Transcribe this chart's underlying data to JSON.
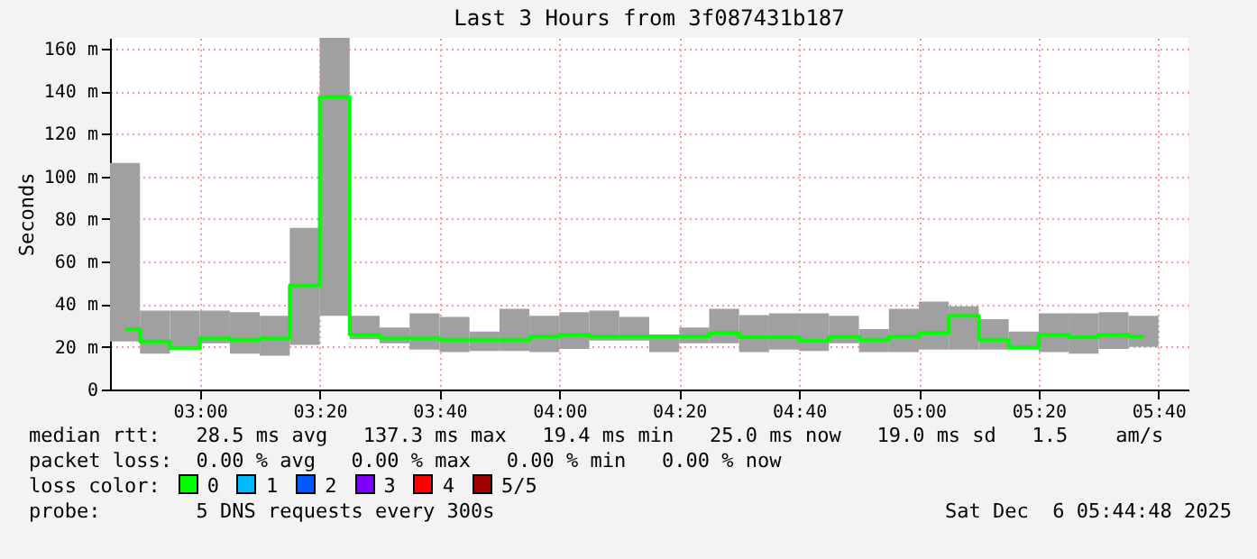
{
  "chart_data": {
    "type": "bar",
    "title": "Last 3 Hours from 3f087431b187",
    "ylabel": "Seconds",
    "x": [
      2.7917,
      2.875,
      2.9583,
      3.0417,
      3.125,
      3.2083,
      3.2917,
      3.375,
      3.4583,
      3.5417,
      3.625,
      3.7083,
      3.7917,
      3.875,
      3.9583,
      4.0417,
      4.125,
      4.2083,
      4.2917,
      4.375,
      4.4583,
      4.5417,
      4.625,
      4.7083,
      4.7917,
      4.875,
      4.9583,
      5.0417,
      5.125,
      5.2083,
      5.2917,
      5.375,
      5.4583,
      5.5417,
      5.625
    ],
    "series": [
      {
        "color": "#a0a0a0",
        "base": [
          22.5,
          16.8,
          19,
          21.7,
          16.8,
          15.9,
          20.9,
          34.6,
          23.6,
          21.7,
          18.7,
          17.6,
          18.1,
          18.1,
          17.6,
          19,
          23,
          23,
          17.6,
          21.7,
          21.7,
          17.6,
          18.7,
          18.1,
          21.7,
          17.6,
          17.6,
          18.7,
          18.7,
          18.7,
          18.7,
          17.6,
          16.8,
          19,
          20
        ],
        "values": [
          83.8,
          20.2,
          18,
          15.3,
          19.5,
          18.7,
          54.9,
          130.4,
          11,
          7.4,
          17,
          16.5,
          9.1,
          19.8,
          17,
          17.3,
          14,
          11.1,
          7.7,
          7.4,
          16.2,
          17.3,
          17,
          17.6,
          12.9,
          10.7,
          20.3,
          22.5,
          20.3,
          14.3,
          8.5,
          18.1,
          18.9,
          17.3,
          14.6
        ]
      },
      {
        "type": "step",
        "name": "0",
        "color": "#00ff00",
        "values": [
          28.3,
          22.5,
          19.4,
          24.2,
          23.4,
          24.2,
          48.9,
          137.3,
          25.8,
          24.2,
          24.2,
          23.4,
          23.4,
          23.4,
          25,
          25.8,
          25,
          25,
          25,
          25,
          26.6,
          24.5,
          24.5,
          23.1,
          24.7,
          23.4,
          25,
          26.6,
          34.6,
          23.4,
          19.8,
          25.8,
          24.5,
          25.8,
          25
        ]
      },
      {
        "type": "step",
        "name": "1",
        "color": "#00b8ff",
        "values": [
          null,
          null,
          null,
          null,
          null,
          null,
          null,
          null,
          null,
          null,
          null,
          null,
          null,
          null,
          null,
          null,
          null,
          null,
          null,
          null,
          null,
          null,
          null,
          null,
          null,
          null,
          null,
          null,
          null,
          null,
          null,
          null,
          null,
          null,
          null
        ]
      },
      {
        "type": "step",
        "name": "2",
        "color": "#0059ff",
        "values": [
          null,
          null,
          null,
          null,
          null,
          null,
          null,
          null,
          null,
          null,
          null,
          null,
          null,
          null,
          null,
          null,
          null,
          null,
          null,
          null,
          null,
          null,
          null,
          null,
          null,
          null,
          null,
          null,
          null,
          null,
          null,
          null,
          null,
          null,
          null
        ]
      },
      {
        "type": "step",
        "name": "3",
        "color": "#7e00ff",
        "values": [
          null,
          null,
          null,
          null,
          null,
          null,
          null,
          null,
          null,
          null,
          null,
          null,
          null,
          null,
          null,
          null,
          null,
          null,
          null,
          null,
          null,
          null,
          null,
          null,
          null,
          null,
          null,
          null,
          null,
          null,
          null,
          null,
          null,
          null,
          null
        ]
      },
      {
        "type": "step",
        "name": "4",
        "color": "#ff0000",
        "values": [
          null,
          null,
          null,
          null,
          null,
          null,
          null,
          null,
          null,
          null,
          null,
          null,
          null,
          null,
          null,
          null,
          null,
          null,
          null,
          null,
          null,
          null,
          null,
          null,
          null,
          null,
          null,
          null,
          null,
          null,
          null,
          null,
          null,
          null,
          null
        ]
      },
      {
        "type": "step",
        "name": "5/5",
        "color": "#a10000",
        "values": [
          null,
          null,
          null,
          null,
          null,
          null,
          null,
          null,
          null,
          null,
          null,
          null,
          null,
          null,
          null,
          null,
          null,
          null,
          null,
          null,
          null,
          null,
          null,
          null,
          null,
          null,
          null,
          null,
          null,
          null,
          null,
          null,
          null,
          null,
          null
        ]
      }
    ],
    "legend_title": "loss color:",
    "legend": "bottom",
    "xlim": [
      2.75,
      5.75
    ],
    "xticks": [
      {
        "value": 3,
        "label": "03:00"
      },
      {
        "value": 3.3333,
        "label": "03:20"
      },
      {
        "value": 3.6667,
        "label": "03:40"
      },
      {
        "value": 4,
        "label": "04:00"
      },
      {
        "value": 4.3333,
        "label": "04:20"
      },
      {
        "value": 4.6667,
        "label": "04:40"
      },
      {
        "value": 5,
        "label": "05:00"
      },
      {
        "value": 5.3333,
        "label": "05:20"
      },
      {
        "value": 5.6667,
        "label": "05:40"
      }
    ],
    "ylim": [
      0,
      165
    ],
    "yticks": [
      0,
      {
        "value": 20,
        "label": "20 m"
      },
      {
        "value": 40,
        "label": "40 m"
      },
      {
        "value": 60,
        "label": "60 m"
      },
      {
        "value": 80,
        "label": "80 m"
      },
      {
        "value": 100,
        "label": "100 m"
      },
      {
        "value": 120,
        "label": "120 m"
      },
      {
        "value": 140,
        "label": "140 m"
      },
      {
        "value": 160,
        "label": "160 m"
      }
    ],
    "grid": true,
    "annotations": [
      "median rtt:   28.5 ms avg   137.3 ms max   19.4 ms min   25.0 ms now   19.0 ms sd   1.5    am/s",
      "packet loss:  0.00 % avg   0.00 % max   0.00 % min   0.00 % now",
      "probe:        5 DNS requests every 300s",
      "Sat Dec  6 05:44:48 2025"
    ]
  }
}
